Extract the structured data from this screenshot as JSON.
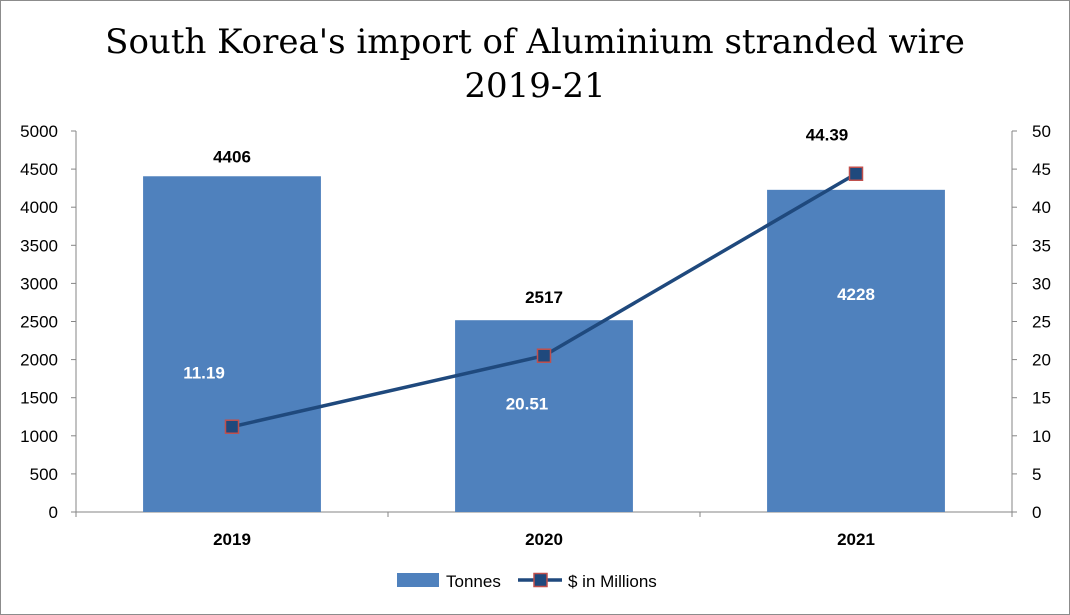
{
  "chart_data": {
    "type": "bar",
    "title_line1": "South Korea's import of Aluminium stranded wire",
    "title_line2": "2019-21",
    "categories": [
      "2019",
      "2020",
      "2021"
    ],
    "series": [
      {
        "name": "Tonnes",
        "type": "bar",
        "axis": "left",
        "values": [
          4406,
          2517,
          4228
        ],
        "labels": [
          "4406",
          "2517",
          "4228"
        ],
        "color": "#4f81bd"
      },
      {
        "name": "$ in Millions",
        "type": "line",
        "axis": "right",
        "values": [
          11.19,
          20.51,
          44.39
        ],
        "labels": [
          "11.19",
          "20.51",
          "44.39"
        ],
        "color": "#1f497d",
        "marker_fill": "#1f497d",
        "marker_border": "#c0504d"
      }
    ],
    "y_left": {
      "min": 0,
      "max": 5000,
      "step": 500,
      "ticks": [
        "0",
        "500",
        "1000",
        "1500",
        "2000",
        "2500",
        "3000",
        "3500",
        "4000",
        "4500",
        "5000"
      ]
    },
    "y_right": {
      "min": 0,
      "max": 50,
      "step": 5,
      "ticks": [
        "0",
        "5",
        "10",
        "15",
        "20",
        "25",
        "30",
        "35",
        "40",
        "45",
        "50"
      ]
    },
    "grid": false,
    "legend_position": "bottom"
  }
}
